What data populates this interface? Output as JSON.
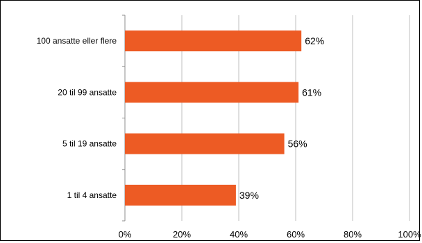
{
  "chart_data": {
    "type": "bar",
    "orientation": "horizontal",
    "categories": [
      "100 ansatte eller flere",
      "20 til 99 ansatte",
      "5 til 19 ansatte",
      "1 til 4 ansatte"
    ],
    "values": [
      62,
      61,
      56,
      39
    ],
    "data_labels": [
      "62%",
      "61%",
      "56%",
      "39%"
    ],
    "xlim": [
      0,
      100
    ],
    "x_ticks": [
      0,
      20,
      40,
      60,
      80,
      100
    ],
    "x_tick_labels": [
      "0%",
      "20%",
      "40%",
      "60%",
      "80%",
      "100%"
    ],
    "title": "",
    "xlabel": "",
    "ylabel": "",
    "grid": "vertical",
    "legend": "none",
    "colors": {
      "bar": "#ed5b24",
      "grid": "#bfbfbf",
      "axis": "#8c8c8c",
      "frame": "#000000"
    }
  }
}
